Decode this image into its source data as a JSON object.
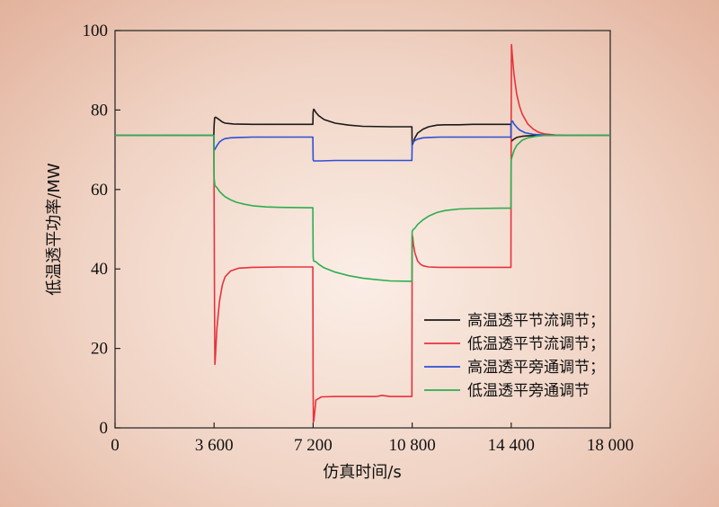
{
  "chart_data": {
    "type": "line",
    "xlabel": "仿真时间/s",
    "ylabel": "低温透平功率/MW",
    "xlim": [
      0,
      18000
    ],
    "ylim": [
      0,
      100
    ],
    "xticks": [
      0,
      3600,
      7200,
      10800,
      14400,
      18000
    ],
    "xtick_labels": [
      "0",
      "3 600",
      "7 200",
      "10 800",
      "14 400",
      "18 000"
    ],
    "yticks": [
      0,
      20,
      40,
      60,
      80,
      100
    ],
    "ytick_labels": [
      "0",
      "20",
      "40",
      "60",
      "80",
      "100"
    ],
    "grid": false,
    "legend_position": "lower-right",
    "series": [
      {
        "name": "高温透平节流调节；",
        "color": "#1a1a1a",
        "x": [
          0,
          3590,
          3600,
          3620,
          3650,
          3700,
          3800,
          3900,
          4000,
          4300,
          5000,
          6000,
          7190,
          7200,
          7220,
          7250,
          7300,
          7400,
          7600,
          8000,
          8500,
          9000,
          10000,
          10790,
          10800,
          10820,
          10900,
          11000,
          11200,
          11400,
          11700,
          12000,
          12500,
          13000,
          14000,
          14390,
          14400,
          14420,
          14450,
          14500,
          14600,
          14800,
          15000,
          15300,
          15600,
          16000,
          16500,
          17000,
          18000
        ],
        "y": [
          73.6,
          73.6,
          76,
          78,
          78.2,
          78,
          77.5,
          77,
          76.7,
          76.5,
          76.4,
          76.4,
          76.4,
          79.5,
          80.2,
          80,
          79.4,
          78.6,
          77.6,
          76.7,
          76.2,
          75.9,
          75.8,
          75.8,
          71.2,
          71.5,
          73,
          74.2,
          75.2,
          75.8,
          76.2,
          76.3,
          76.3,
          76.4,
          76.4,
          76.4,
          72.4,
          72.2,
          72.4,
          72.7,
          73.1,
          73.4,
          73.5,
          73.6,
          73.6,
          73.6,
          73.6,
          73.6,
          73.6
        ]
      },
      {
        "name": "低温透平节流调节；",
        "color": "#e8323c",
        "x": [
          0,
          3590,
          3600,
          3615,
          3630,
          3650,
          3700,
          3800,
          3900,
          4000,
          4200,
          4500,
          5000,
          6000,
          7190,
          7200,
          7210,
          7230,
          7300,
          7500,
          8000,
          9000,
          9500,
          9700,
          10000,
          10790,
          10800,
          10820,
          10850,
          10900,
          11000,
          11100,
          11200,
          11400,
          11800,
          12500,
          14000,
          14390,
          14400,
          14410,
          14450,
          14500,
          14600,
          14700,
          14800,
          15000,
          15200,
          15400,
          15600,
          16000,
          16500,
          17000,
          18000
        ],
        "y": [
          73.6,
          73.6,
          60,
          30,
          16,
          18,
          25,
          32,
          36,
          38,
          39.5,
          40.2,
          40.4,
          40.5,
          40.5,
          10,
          1.5,
          2,
          7,
          7.8,
          7.9,
          7.9,
          7.9,
          8.2,
          7.9,
          7.9,
          48.5,
          48,
          46,
          44,
          42,
          41.2,
          40.8,
          40.5,
          40.4,
          40.4,
          40.4,
          40.4,
          80,
          96.5,
          93,
          89,
          84,
          81,
          79,
          76.5,
          75.2,
          74.4,
          74,
          73.7,
          73.6,
          73.6,
          73.6
        ]
      },
      {
        "name": "高温透平旁通调节；",
        "color": "#2d4fd6",
        "x": [
          0,
          3590,
          3600,
          3620,
          3700,
          3800,
          3900,
          4000,
          4200,
          4500,
          5000,
          6000,
          7190,
          7200,
          7220,
          7300,
          7500,
          8000,
          9000,
          10000,
          10790,
          10800,
          10830,
          10900,
          11000,
          11200,
          11400,
          11800,
          12500,
          14000,
          14390,
          14400,
          14450,
          14500,
          14600,
          14700,
          14900,
          15200,
          15600,
          16000,
          17000,
          18000
        ],
        "y": [
          73.6,
          73.6,
          70.5,
          70,
          71,
          72,
          72.5,
          72.8,
          73,
          73.1,
          73.2,
          73.2,
          73.2,
          67.5,
          67.2,
          67.2,
          67.2,
          67.3,
          67.3,
          67.3,
          67.3,
          72,
          72,
          72.3,
          72.7,
          73,
          73.1,
          73.2,
          73.2,
          73.2,
          73.2,
          77,
          77.2,
          76.5,
          75.7,
          75,
          74.3,
          73.9,
          73.7,
          73.6,
          73.6,
          73.6
        ]
      },
      {
        "name": "低温透平旁通调节",
        "color": "#2cae4f",
        "x": [
          0,
          3590,
          3600,
          3630,
          3700,
          3800,
          3900,
          4000,
          4200,
          4400,
          4700,
          5000,
          5500,
          6000,
          7000,
          7190,
          7200,
          7220,
          7300,
          7400,
          7600,
          8000,
          8500,
          9000,
          9500,
          10000,
          10790,
          10800,
          10850,
          10900,
          11000,
          11200,
          11400,
          11700,
          12000,
          12500,
          13000,
          14000,
          14390,
          14400,
          14430,
          14500,
          14600,
          14800,
          15000,
          15300,
          15600,
          16000,
          17000,
          18000
        ],
        "y": [
          73.6,
          73.6,
          63,
          61,
          60.5,
          59.5,
          58.8,
          58.2,
          57.4,
          56.8,
          56.3,
          55.9,
          55.6,
          55.5,
          55.4,
          55.4,
          43,
          42,
          41.8,
          41.2,
          40.3,
          39.2,
          38.3,
          37.7,
          37.3,
          37,
          36.9,
          49.5,
          50,
          50.3,
          51.2,
          52.4,
          53.3,
          54.2,
          54.7,
          55.1,
          55.2,
          55.3,
          55.3,
          67.5,
          68.2,
          69.8,
          71.1,
          72.4,
          73,
          73.4,
          73.6,
          73.6,
          73.6,
          73.6
        ]
      }
    ]
  }
}
